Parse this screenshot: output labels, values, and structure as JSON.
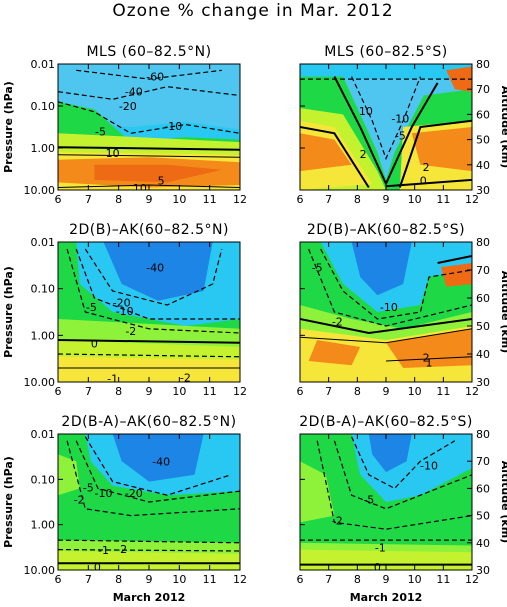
{
  "figure": {
    "title": "Ozone % change in Mar. 2012",
    "left_ylabel": "Pressure (hPa)",
    "right_ylabel": "Altitude (km)",
    "xlabel": "March 2012"
  },
  "chart_data": [
    {
      "type": "heatmap",
      "title": "MLS (60–82.5°N)",
      "x_ticks": [
        "6",
        "7",
        "8",
        "9",
        "10",
        "11",
        "12"
      ],
      "y_ticks": [
        "0.01",
        "0.10",
        "1.00",
        "10.00"
      ],
      "alt_ticks": [],
      "xlim": [
        6,
        12
      ],
      "ylim_hPa": [
        10,
        0.01
      ],
      "contour_labels": [
        {
          "text": "-60",
          "x": 9.2,
          "y": 0.02
        },
        {
          "text": "-40",
          "x": 8.5,
          "y": 0.045
        },
        {
          "text": "-20",
          "x": 8.3,
          "y": 0.1
        },
        {
          "text": "-10",
          "x": 9.8,
          "y": 0.3
        },
        {
          "text": "-5",
          "x": 7.4,
          "y": 0.4
        },
        {
          "text": "10",
          "x": 7.8,
          "y": 1.3
        },
        {
          "text": "5",
          "x": 9.4,
          "y": 6
        },
        {
          "text": "10",
          "x": 8.7,
          "y": 9
        }
      ]
    },
    {
      "type": "heatmap",
      "title": "MLS (60–82.5°S)",
      "x_ticks": [
        "6",
        "7",
        "8",
        "9",
        "10",
        "11",
        "12"
      ],
      "y_ticks": [],
      "alt_ticks": [
        "80",
        "70",
        "60",
        "50",
        "40",
        "30"
      ],
      "xlim": [
        6,
        12
      ],
      "ylim_hPa": [
        10,
        0.01
      ],
      "contour_labels": [
        {
          "text": "10",
          "x": 8.3,
          "y": 0.13
        },
        {
          "text": "-10",
          "x": 9.5,
          "y": 0.2
        },
        {
          "text": "-5",
          "x": 9.5,
          "y": 0.5
        },
        {
          "text": "2",
          "x": 8.2,
          "y": 1.4
        },
        {
          "text": "2",
          "x": 10.4,
          "y": 2.8
        },
        {
          "text": "0",
          "x": 10.3,
          "y": 6
        }
      ]
    },
    {
      "type": "heatmap",
      "title": "2D(B)–AK(60–82.5°N)",
      "x_ticks": [
        "6",
        "7",
        "8",
        "9",
        "10",
        "11",
        "12"
      ],
      "y_ticks": [
        "0.01",
        "0.10",
        "1.00",
        "10.00"
      ],
      "alt_ticks": [],
      "xlim": [
        6,
        12
      ],
      "ylim_hPa": [
        10,
        0.01
      ],
      "contour_labels": [
        {
          "text": "-40",
          "x": 9.2,
          "y": 0.035
        },
        {
          "text": "-20",
          "x": 8.1,
          "y": 0.2
        },
        {
          "text": "-10",
          "x": 8.2,
          "y": 0.3
        },
        {
          "text": "-5",
          "x": 7.1,
          "y": 0.25
        },
        {
          "text": "-2",
          "x": 8.4,
          "y": 0.8
        },
        {
          "text": "0",
          "x": 7.2,
          "y": 1.5
        },
        {
          "text": "-1",
          "x": 7.8,
          "y": 8.5
        },
        {
          "text": "-2",
          "x": 10.2,
          "y": 8
        }
      ]
    },
    {
      "type": "heatmap",
      "title": "2D(B)–AK(60–82.5°S)",
      "x_ticks": [
        "6",
        "7",
        "8",
        "9",
        "10",
        "11",
        "12"
      ],
      "y_ticks": [],
      "alt_ticks": [
        "80",
        "70",
        "60",
        "50",
        "40",
        "30"
      ],
      "xlim": [
        6,
        12
      ],
      "ylim_hPa": [
        10,
        0.01
      ],
      "contour_labels": [
        {
          "text": "-5",
          "x": 6.6,
          "y": 0.035
        },
        {
          "text": "-10",
          "x": 9.1,
          "y": 0.25
        },
        {
          "text": "-2",
          "x": 7.3,
          "y": 0.5
        },
        {
          "text": "2",
          "x": 10.4,
          "y": 3
        },
        {
          "text": "1",
          "x": 10.5,
          "y": 3.8
        }
      ]
    },
    {
      "type": "heatmap",
      "title": "2D(B-A)–AK(60–82.5°N)",
      "x_ticks": [
        "6",
        "7",
        "8",
        "9",
        "10",
        "11",
        "12"
      ],
      "y_ticks": [
        "0.01",
        "0.10",
        "1.00",
        "10.00"
      ],
      "alt_ticks": [],
      "xlim": [
        6,
        12
      ],
      "ylim_hPa": [
        10,
        0.01
      ],
      "contour_labels": [
        {
          "text": "-40",
          "x": 9.4,
          "y": 0.04
        },
        {
          "text": "-20",
          "x": 8.5,
          "y": 0.2
        },
        {
          "text": "-10",
          "x": 7.5,
          "y": 0.2
        },
        {
          "text": "-5",
          "x": 7.0,
          "y": 0.15
        },
        {
          "text": "-2",
          "x": 6.7,
          "y": 0.28
        },
        {
          "text": "-2",
          "x": 8.1,
          "y": 3.4
        },
        {
          "text": "-1",
          "x": 7.5,
          "y": 3.6
        },
        {
          "text": "0",
          "x": 7.3,
          "y": 8.5
        }
      ]
    },
    {
      "type": "heatmap",
      "title": "2D(B-A)–AK(60–82.5°S)",
      "x_ticks": [
        "6",
        "7",
        "8",
        "9",
        "10",
        "11",
        "12"
      ],
      "y_ticks": [],
      "alt_ticks": [
        "80",
        "70",
        "60",
        "50",
        "40",
        "30"
      ],
      "xlim": [
        6,
        12
      ],
      "ylim_hPa": [
        10,
        0.01
      ],
      "contour_labels": [
        {
          "text": "-10",
          "x": 10.5,
          "y": 0.05
        },
        {
          "text": "-5",
          "x": 8.4,
          "y": 0.28
        },
        {
          "text": "-2",
          "x": 7.3,
          "y": 0.8
        },
        {
          "text": "-1",
          "x": 8.8,
          "y": 3.2
        },
        {
          "text": "0",
          "x": 8.7,
          "y": 8.5
        }
      ]
    }
  ],
  "colors": {
    "cyan": "#29c8f2",
    "blue": "#1d85e6",
    "lightblue": "#4fc6f0",
    "green": "#1fd846",
    "lightgreen": "#8ef23a",
    "yellowgreen": "#c4f22e",
    "yellow": "#f7e63a",
    "orange": "#f48a1a",
    "darkorange": "#ee6a14"
  }
}
